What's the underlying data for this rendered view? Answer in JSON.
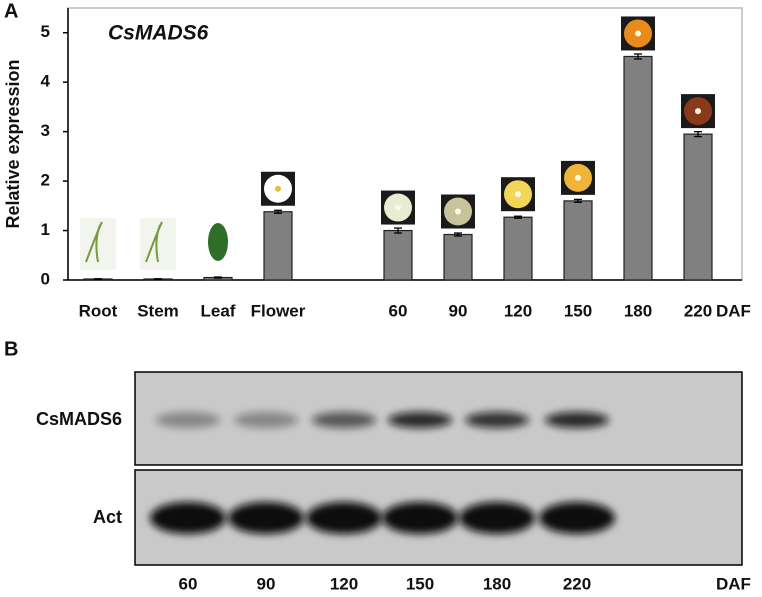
{
  "chart_data": {
    "type": "bar",
    "panel_label": "A",
    "title": "CsMADS6",
    "y_label": "Relative expression",
    "x_label": "DAF",
    "categories": [
      "Root",
      "Stem",
      "Leaf",
      "Flower",
      null,
      "60",
      "90",
      "120",
      "150",
      "180",
      "220"
    ],
    "values": [
      0.02,
      0.02,
      0.05,
      1.38,
      null,
      1.0,
      0.92,
      1.27,
      1.6,
      4.52,
      2.95
    ],
    "errors": [
      0.005,
      0.005,
      0.01,
      0.03,
      null,
      0.05,
      0.03,
      0.02,
      0.03,
      0.05,
      0.05
    ],
    "color": "#808080",
    "ylim": [
      0,
      5.5
    ],
    "yticks": [
      0,
      1,
      2,
      3,
      4,
      5
    ]
  },
  "blot": {
    "panel_label": "B",
    "rows": [
      "CsMADS6",
      "Act"
    ],
    "lanes": [
      "60",
      "90",
      "120",
      "150",
      "180",
      "220"
    ],
    "lane_unit": "DAF"
  }
}
